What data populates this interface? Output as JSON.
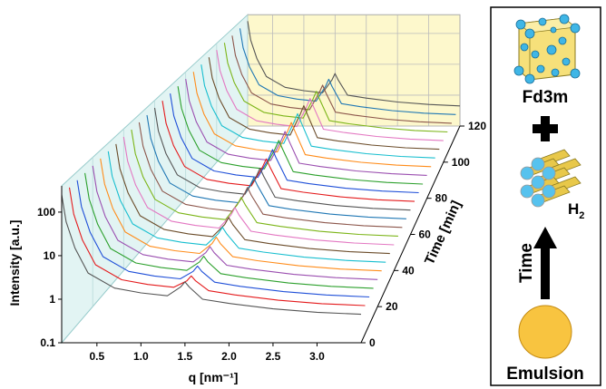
{
  "chart_data": {
    "type": "waterfall",
    "xlabel": "q [nm⁻¹]",
    "ylabel": "Intensity [a.u.]",
    "zlabel": "Time [min]",
    "x": [
      0.1,
      0.15,
      0.25,
      0.4,
      0.7,
      1.0,
      1.3,
      1.45,
      1.5,
      1.55,
      1.7,
      2.0,
      2.5,
      3.0,
      3.5
    ],
    "xlim": [
      0.1,
      3.5
    ],
    "ylim": [
      0.1,
      400
    ],
    "zlim": [
      0,
      120
    ],
    "xticks": [
      0.5,
      {
        "value": 1,
        "label": "1.0"
      },
      1.5,
      {
        "value": 2,
        "label": "2.0"
      },
      2.5,
      {
        "value": 3,
        "label": "3.0"
      }
    ],
    "yticks": [
      0.1,
      1,
      10,
      100
    ],
    "zticks": [
      0,
      20,
      40,
      60,
      80,
      100,
      120
    ],
    "log_y": true,
    "grid": true,
    "series": [
      {
        "z": 0,
        "color": "#555555",
        "values": [
          250,
          60,
          15,
          4,
          1.8,
          1.4,
          1.2,
          1.9,
          2.5,
          1.9,
          1.0,
          0.8,
          0.6,
          0.5,
          0.45
        ]
      },
      {
        "z": 5,
        "color": "#e41a1c",
        "values": [
          250,
          60,
          15,
          4,
          1.8,
          1.4,
          1.2,
          1.7,
          2.2,
          1.7,
          1.0,
          0.8,
          0.6,
          0.5,
          0.45
        ]
      },
      {
        "z": 10,
        "color": "#1f4fd8",
        "values": [
          250,
          60,
          15,
          4,
          1.8,
          1.4,
          1.2,
          1.8,
          2.4,
          1.8,
          1.0,
          0.8,
          0.6,
          0.5,
          0.45
        ]
      },
      {
        "z": 15,
        "color": "#2ca02c",
        "values": [
          250,
          60,
          15,
          4,
          1.8,
          1.4,
          1.2,
          1.9,
          2.6,
          1.9,
          1.0,
          0.8,
          0.6,
          0.5,
          0.45
        ]
      },
      {
        "z": 20,
        "color": "#9b4fb0",
        "values": [
          250,
          60,
          15,
          4,
          1.8,
          1.4,
          1.2,
          2,
          2.8,
          2,
          1.0,
          0.8,
          0.6,
          0.5,
          0.45
        ]
      },
      {
        "z": 25,
        "color": "#ff8c1a",
        "values": [
          250,
          60,
          15,
          4,
          1.8,
          1.4,
          1.2,
          2.1,
          3,
          2.1,
          1.0,
          0.8,
          0.6,
          0.5,
          0.45
        ]
      },
      {
        "z": 30,
        "color": "#17becf",
        "values": [
          250,
          60,
          15,
          4,
          1.8,
          1.4,
          1.2,
          2.3,
          3.3,
          2.3,
          1.0,
          0.8,
          0.6,
          0.5,
          0.45
        ]
      },
      {
        "z": 35,
        "color": "#6b4c2a",
        "values": [
          250,
          60,
          15,
          4,
          1.8,
          1.4,
          1.2,
          2.4,
          3.6,
          2.4,
          1.0,
          0.8,
          0.6,
          0.5,
          0.45
        ]
      },
      {
        "z": 40,
        "color": "#e377c2",
        "values": [
          250,
          60,
          15,
          4,
          1.8,
          1.4,
          1.2,
          2.6,
          4,
          2.6,
          1.0,
          0.8,
          0.6,
          0.5,
          0.45
        ]
      },
      {
        "z": 45,
        "color": "#7cb518",
        "values": [
          250,
          60,
          15,
          4,
          1.8,
          1.4,
          1.2,
          2.9,
          4.5,
          2.9,
          1.0,
          0.8,
          0.6,
          0.5,
          0.45
        ]
      },
      {
        "z": 50,
        "color": "#8c564b",
        "values": [
          250,
          60,
          15,
          4,
          1.8,
          1.4,
          1.2,
          3.1,
          5,
          3.1,
          1.0,
          0.8,
          0.6,
          0.5,
          0.45
        ]
      },
      {
        "z": 55,
        "color": "#1f77b4",
        "values": [
          250,
          60,
          15,
          4,
          1.8,
          1.4,
          1.2,
          3.4,
          5.5,
          3.4,
          1.0,
          0.8,
          0.6,
          0.5,
          0.45
        ]
      },
      {
        "z": 60,
        "color": "#555555",
        "values": [
          250,
          60,
          15,
          4,
          1.8,
          1.4,
          1.2,
          3.6,
          6,
          3.6,
          1.0,
          0.8,
          0.6,
          0.5,
          0.45
        ]
      },
      {
        "z": 65,
        "color": "#e41a1c",
        "values": [
          250,
          60,
          15,
          4,
          1.8,
          1.4,
          1.2,
          3.9,
          6.5,
          3.9,
          1.0,
          0.8,
          0.6,
          0.5,
          0.45
        ]
      },
      {
        "z": 70,
        "color": "#1f4fd8",
        "values": [
          250,
          60,
          15,
          4,
          1.8,
          1.4,
          1.2,
          4.1,
          7,
          4.1,
          1.0,
          0.8,
          0.6,
          0.5,
          0.45
        ]
      },
      {
        "z": 75,
        "color": "#2ca02c",
        "values": [
          250,
          60,
          15,
          4,
          1.8,
          1.4,
          1.2,
          4.4,
          7.5,
          4.4,
          1.0,
          0.8,
          0.6,
          0.5,
          0.45
        ]
      },
      {
        "z": 80,
        "color": "#9b4fb0",
        "values": [
          250,
          60,
          15,
          4,
          1.8,
          1.4,
          1.2,
          4.6,
          8,
          4.6,
          1.0,
          0.8,
          0.6,
          0.5,
          0.45
        ]
      },
      {
        "z": 85,
        "color": "#ff8c1a",
        "values": [
          250,
          60,
          15,
          4,
          1.8,
          1.4,
          1.2,
          4.9,
          8.5,
          4.9,
          1.0,
          0.8,
          0.6,
          0.5,
          0.45
        ]
      },
      {
        "z": 90,
        "color": "#17becf",
        "values": [
          250,
          60,
          15,
          4,
          1.8,
          1.4,
          1.2,
          5.1,
          9,
          5.1,
          1.0,
          0.8,
          0.6,
          0.5,
          0.45
        ]
      },
      {
        "z": 95,
        "color": "#6b4c2a",
        "values": [
          250,
          60,
          15,
          4,
          1.8,
          1.4,
          1.2,
          5.1,
          9,
          5.1,
          1.0,
          0.8,
          0.6,
          0.5,
          0.45
        ]
      },
      {
        "z": 100,
        "color": "#e377c2",
        "values": [
          250,
          60,
          15,
          4,
          1.8,
          1.4,
          1.2,
          4.9,
          8.5,
          4.9,
          1.0,
          0.8,
          0.6,
          0.5,
          0.45
        ]
      },
      {
        "z": 105,
        "color": "#7cb518",
        "values": [
          250,
          60,
          15,
          4,
          1.8,
          1.4,
          1.2,
          4.6,
          8,
          4.6,
          1.0,
          0.8,
          0.6,
          0.5,
          0.45
        ]
      },
      {
        "z": 110,
        "color": "#8c564b",
        "values": [
          250,
          60,
          15,
          4,
          1.8,
          1.4,
          1.2,
          4.1,
          7,
          4.1,
          1.0,
          0.8,
          0.6,
          0.5,
          0.45
        ]
      },
      {
        "z": 115,
        "color": "#1f77b4",
        "values": [
          250,
          60,
          15,
          4,
          1.8,
          1.4,
          1.2,
          3.6,
          6,
          3.6,
          1.0,
          0.8,
          0.6,
          0.5,
          0.45
        ]
      },
      {
        "z": 120,
        "color": "#555555",
        "values": [
          250,
          60,
          15,
          4,
          1.8,
          1.4,
          1.2,
          3.1,
          5,
          3.1,
          1.0,
          0.8,
          0.6,
          0.5,
          0.45
        ]
      }
    ]
  },
  "panel": {
    "top_label": "Fd3m",
    "middle_label": "H",
    "middle_label_sub": "2",
    "arrow_label": "Time",
    "bottom_label": "Emulsion"
  }
}
